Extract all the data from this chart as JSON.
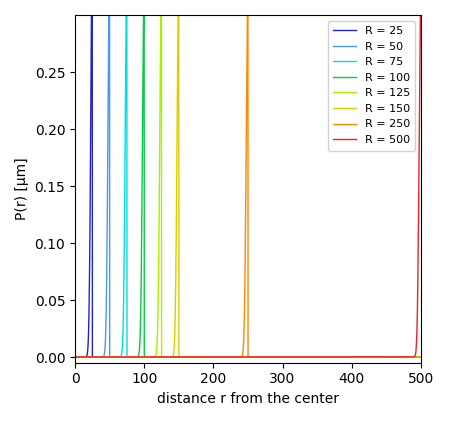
{
  "R_values": [
    25,
    50,
    75,
    100,
    125,
    150,
    250,
    500
  ],
  "line_colors": [
    "#2222cc",
    "#4499ff",
    "#00dddd",
    "#00cc44",
    "#aaee00",
    "#ddcc00",
    "#ff8800",
    "#ee2222"
  ],
  "r_max": 500,
  "r_points": 5000,
  "xlabel": "distance r from the center",
  "ylabel": "P(r) [μm]",
  "xlim": [
    0,
    500
  ],
  "ylim": [
    -0.005,
    0.3
  ],
  "yticks": [
    0.0,
    0.05,
    0.1,
    0.15,
    0.2,
    0.25
  ],
  "xticks": [
    0,
    100,
    200,
    300,
    400,
    500
  ],
  "legend_labels": [
    "R = 25",
    "R = 50",
    "R = 75",
    "R = 100",
    "R = 125",
    "R = 150",
    "R = 250",
    "R = 500"
  ],
  "sigma_abs": 2.5
}
